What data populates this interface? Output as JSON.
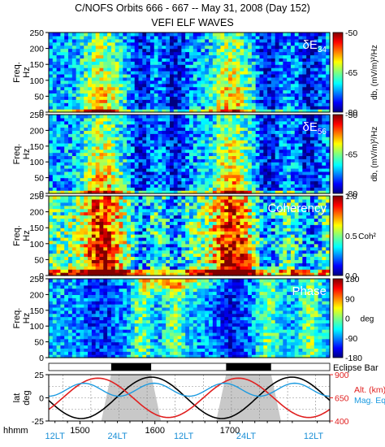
{
  "header": {
    "title": "C/NOFS Orbits 666 - 667  --  May 31, 2008 (Day 152)",
    "subtitle": "VEFI ELF WAVES"
  },
  "colors": {
    "lt_label": "#1a8fd6",
    "alt_curve": "#e02020",
    "mag_eq_curve": "#1a9ae0",
    "lat_curve": "#000000",
    "eclipse_bar": "#000000",
    "night_shading": "#c8c8c8"
  },
  "chart_data": [
    {
      "type": "heatmap",
      "panel_label": "δE34",
      "ylabel": "Freq. Hz",
      "ylim": [
        0,
        250
      ],
      "y_ticks": [
        0,
        50,
        100,
        150,
        200,
        250
      ],
      "colorbar": {
        "label": "db, (mV/m)²/Hz",
        "range": [
          -80,
          -50
        ],
        "ticks": [
          -50,
          -65,
          -80
        ],
        "colormap": "jet"
      }
    },
    {
      "type": "heatmap",
      "panel_label": "δE56",
      "ylabel": "Freq. Hz",
      "ylim": [
        0,
        250
      ],
      "y_ticks": [
        0,
        50,
        100,
        150,
        200,
        250
      ],
      "colorbar": {
        "label": "db, (mV/m)²/Hz",
        "range": [
          -80,
          -50
        ],
        "ticks": [
          -50,
          -65,
          -80
        ],
        "colormap": "jet"
      }
    },
    {
      "type": "heatmap",
      "panel_label": "Coherency",
      "ylabel": "Freq. Hz",
      "ylim": [
        0,
        250
      ],
      "y_ticks": [
        0,
        50,
        100,
        150,
        200,
        250
      ],
      "colorbar": {
        "label": "Coh²",
        "range": [
          0.0,
          1.0
        ],
        "ticks": [
          "1.0",
          "0.5",
          "0.0"
        ],
        "colormap": "jet"
      }
    },
    {
      "type": "heatmap",
      "panel_label": "Phase",
      "ylabel": "Freq. Hz",
      "ylim": [
        0,
        250
      ],
      "y_ticks": [
        0,
        50,
        100,
        150,
        200,
        250
      ],
      "colorbar": {
        "label": "deg",
        "range": [
          -180,
          180
        ],
        "ticks": [
          180,
          90,
          0,
          -90,
          -180
        ],
        "colormap": "jet"
      }
    },
    {
      "type": "bar",
      "label": "Eclipse Bar",
      "eclipse_intervals_hhmm": [
        [
          "15:25",
          "15:57"
        ],
        [
          "16:57",
          "17:33"
        ]
      ]
    },
    {
      "type": "line",
      "ylabel": "lat deg",
      "ylim": [
        -25,
        25
      ],
      "y_ticks": [
        25,
        0,
        -25
      ],
      "right_ylim": [
        400,
        900
      ],
      "right_ticks": [
        900,
        650,
        400
      ],
      "series": [
        {
          "name": "Alt. (km)",
          "color": "#e02020"
        },
        {
          "name": "Mag. Eq.",
          "color": "#1a9ae0"
        }
      ]
    }
  ],
  "x_axis": {
    "label": "hhmm",
    "range_hhmm": [
      "14:35",
      "18:20"
    ],
    "ticks": [
      "1500",
      "1600",
      "1700"
    ],
    "ticks_hhmm": [
      "15:00",
      "16:00",
      "17:00"
    ]
  },
  "local_time_labels": [
    {
      "label": "12LT",
      "time_hhmm": "14:40"
    },
    {
      "label": "24LT",
      "time_hhmm": "15:30"
    },
    {
      "label": "12LT",
      "time_hhmm": "16:23"
    },
    {
      "label": "24LT",
      "time_hhmm": "17:13"
    },
    {
      "label": "12LT",
      "time_hhmm": "18:07"
    }
  ]
}
